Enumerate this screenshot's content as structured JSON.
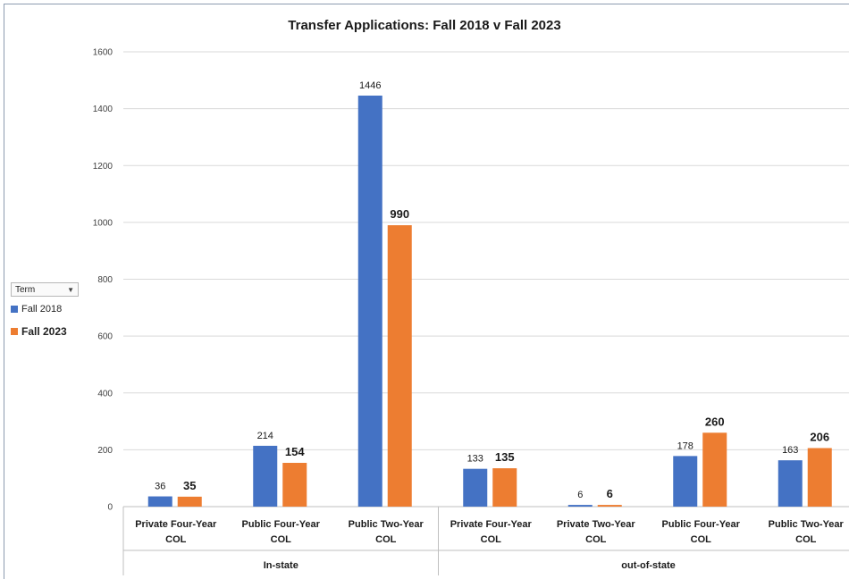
{
  "chart_data": {
    "type": "bar",
    "title": "Transfer Applications: Fall 2018 v Fall 2023",
    "categories": [
      "Private Four-Year COL",
      "Public Four-Year COL",
      "Public Two-Year COL",
      "Private Four-Year COL",
      "Private Two-Year COL",
      "Public Four-Year COL",
      "Public Two-Year COL"
    ],
    "groups": [
      {
        "label": "In-state",
        "categories": [
          0,
          1,
          2
        ]
      },
      {
        "label": "out-of-state",
        "categories": [
          3,
          4,
          5,
          6
        ]
      }
    ],
    "series": [
      {
        "name": "Fall 2018",
        "color": "#4472c4",
        "values": [
          36,
          214,
          1446,
          133,
          6,
          178,
          163
        ]
      },
      {
        "name": "Fall 2023",
        "color": "#ed7d31",
        "values": [
          35,
          154,
          990,
          135,
          6,
          260,
          206
        ]
      }
    ],
    "ylim": [
      0,
      1600
    ],
    "yticks": [
      0,
      200,
      400,
      600,
      800,
      1000,
      1200,
      1400,
      1600
    ],
    "grid": true,
    "legend": "left"
  },
  "legend": {
    "filter_label": "Term",
    "items": [
      "Fall 2018",
      "Fall 2023"
    ]
  }
}
